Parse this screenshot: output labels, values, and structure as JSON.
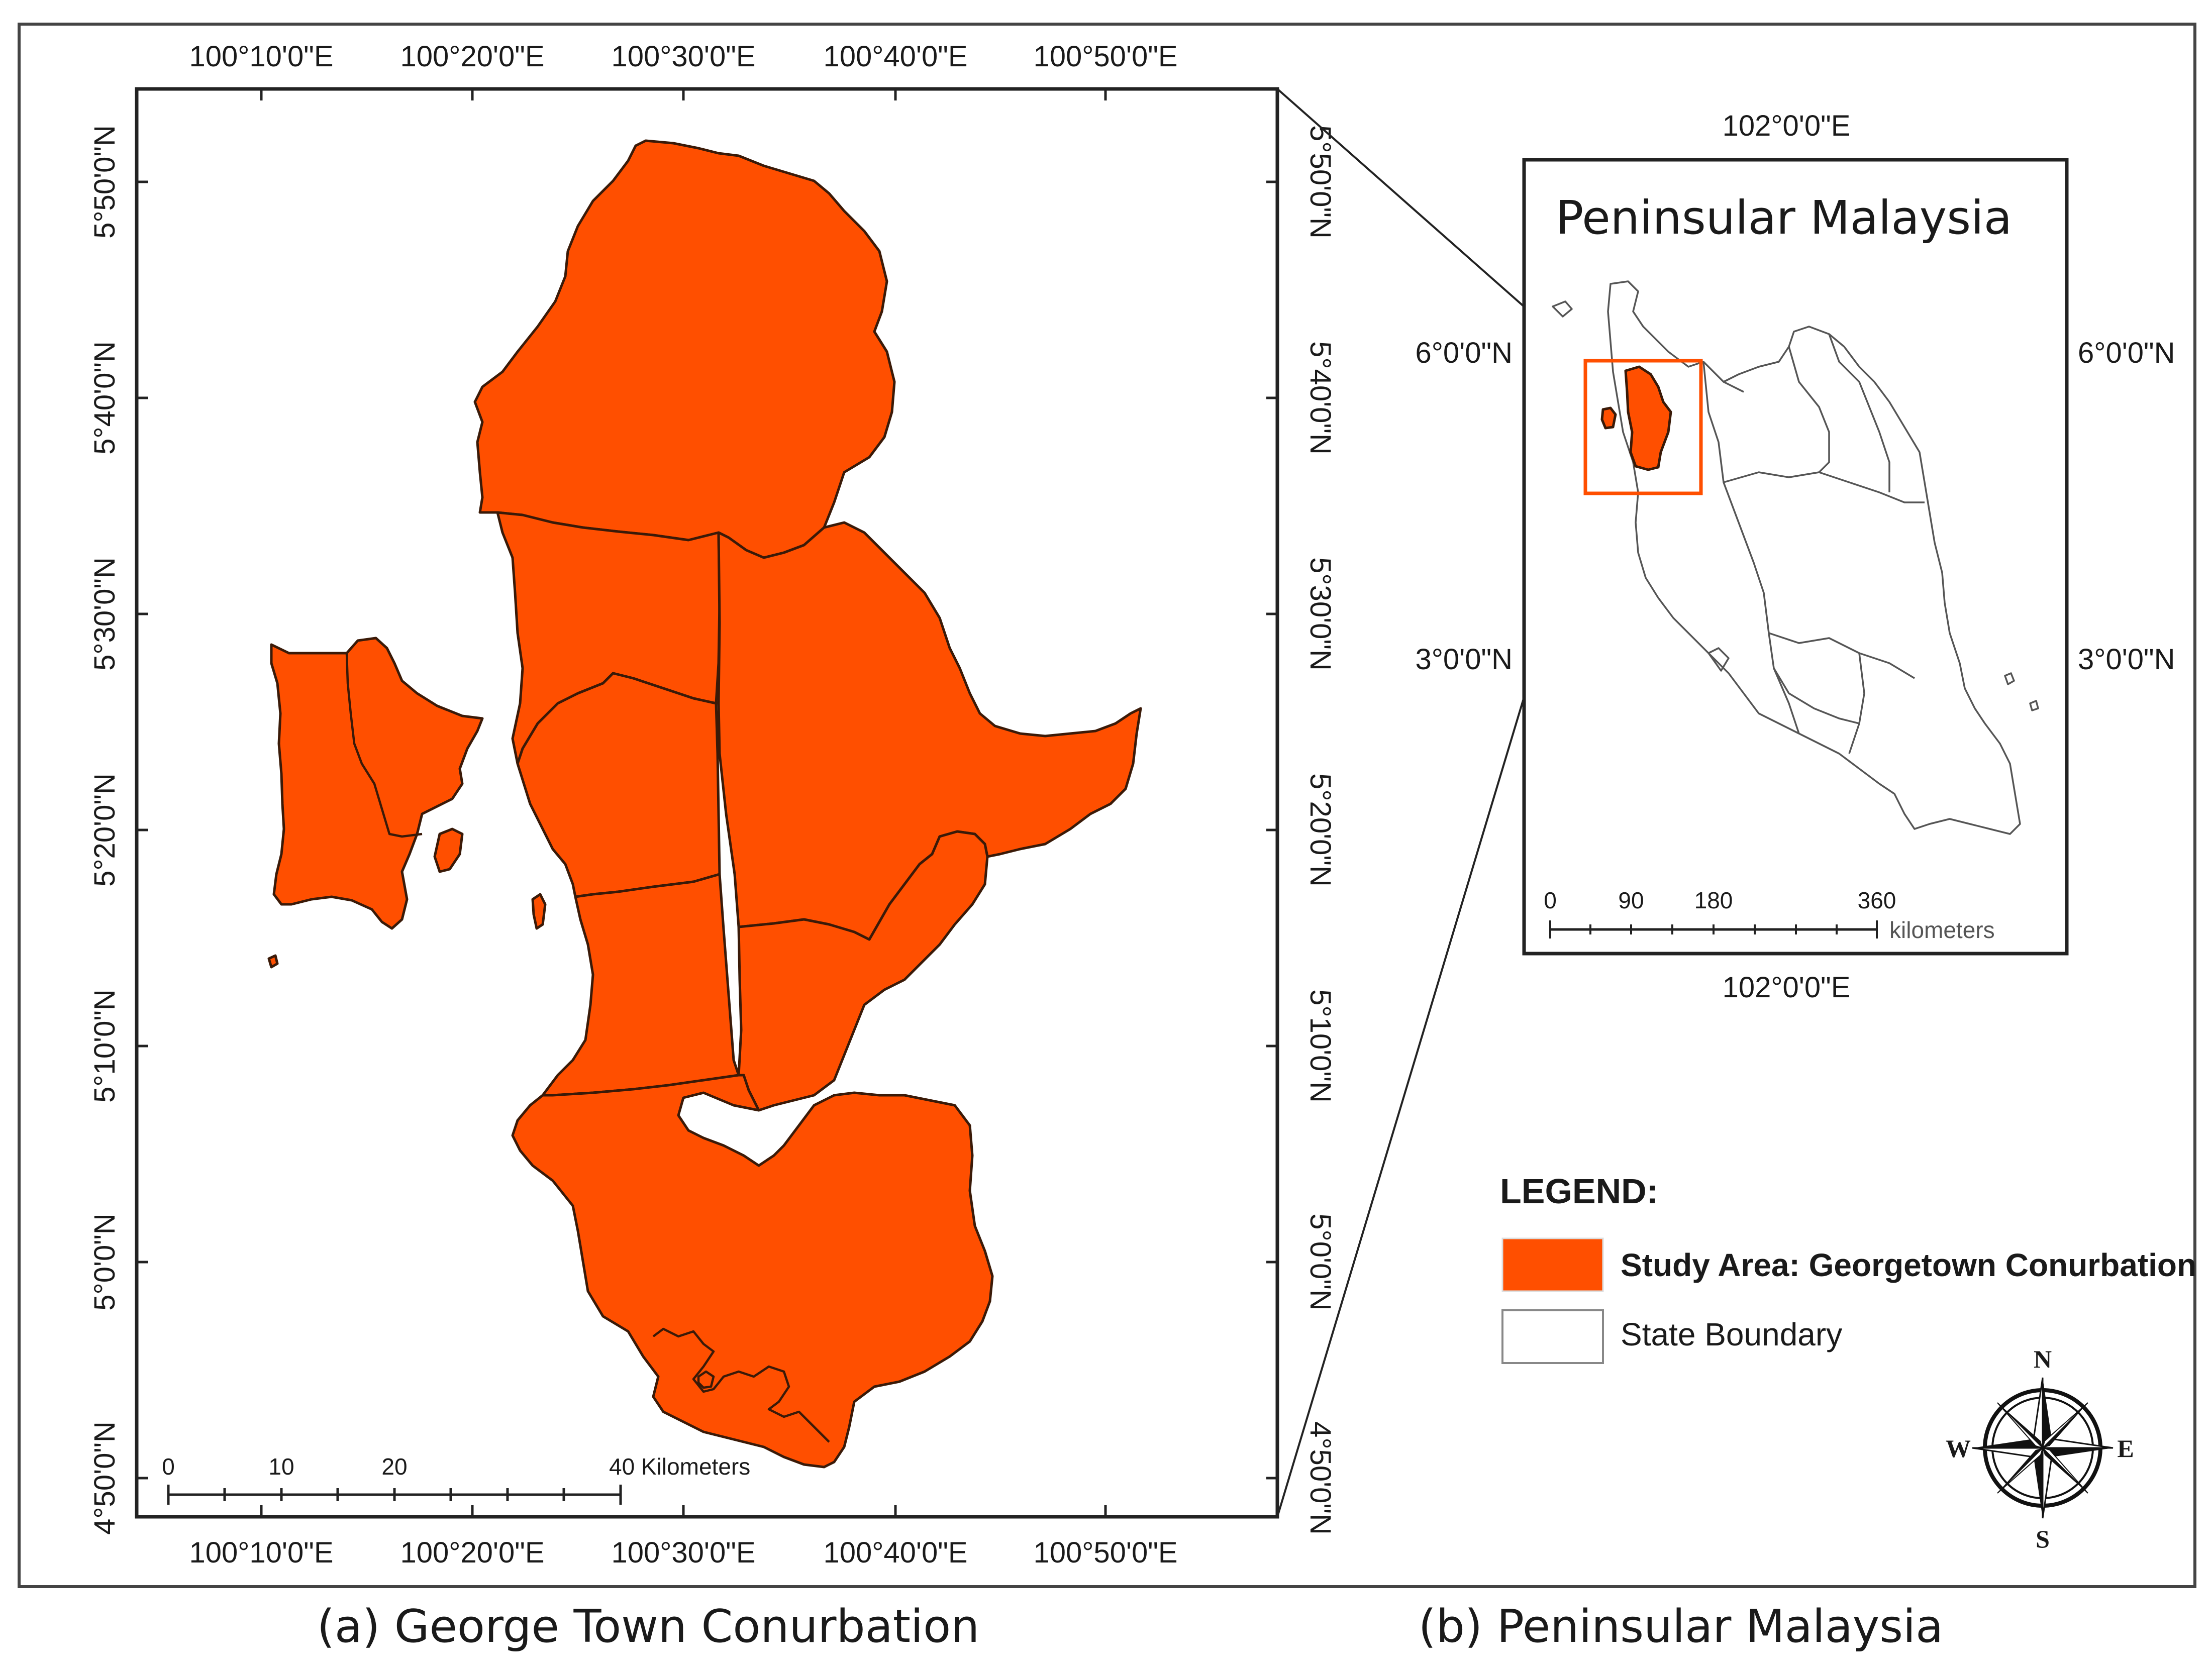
{
  "panel_a": {
    "caption": "(a) George Town Conurbation",
    "top_ticks": [
      "100°10'0\"E",
      "100°20'0\"E",
      "100°30'0\"E",
      "100°40'0\"E",
      "100°50'0\"E"
    ],
    "bottom_ticks": [
      "100°10'0\"E",
      "100°20'0\"E",
      "100°30'0\"E",
      "100°40'0\"E",
      "100°50'0\"E"
    ],
    "left_ticks": [
      "5°50'0\"N",
      "5°40'0\"N",
      "5°30'0\"N",
      "5°20'0\"N",
      "5°10'0\"N",
      "5°0'0\"N",
      "4°50'0\"N"
    ],
    "right_ticks": [
      "5°50'0\"N",
      "5°40'0\"N",
      "5°30'0\"N",
      "5°20'0\"N",
      "5°10'0\"N",
      "5°0'0\"N",
      "4°50'0\"N"
    ],
    "scale_labels": [
      "0",
      "10",
      "20",
      "40 Kilometers"
    ],
    "fill_color": "#ff4f00"
  },
  "panel_b": {
    "caption": "(b) Peninsular Malaysia",
    "title": "Peninsular Malaysia",
    "top_tick": "102°0'0\"E",
    "bottom_tick": "102°0'0\"E",
    "left_ticks": [
      "6°0'0\"N",
      "3°0'0\"N"
    ],
    "right_ticks": [
      "6°0'0\"N",
      "3°0'0\"N"
    ],
    "scale_labels": [
      "0",
      "90",
      "180",
      "360"
    ],
    "scale_unit": "kilometers"
  },
  "legend": {
    "title": "LEGEND:",
    "items": [
      {
        "label": "Study Area: Georgetown Conurbation",
        "color": "#ff4f00"
      },
      {
        "label": "State Boundary",
        "color": "#ffffff"
      }
    ]
  },
  "compass": {
    "n": "N",
    "s": "S",
    "e": "E",
    "w": "W"
  }
}
